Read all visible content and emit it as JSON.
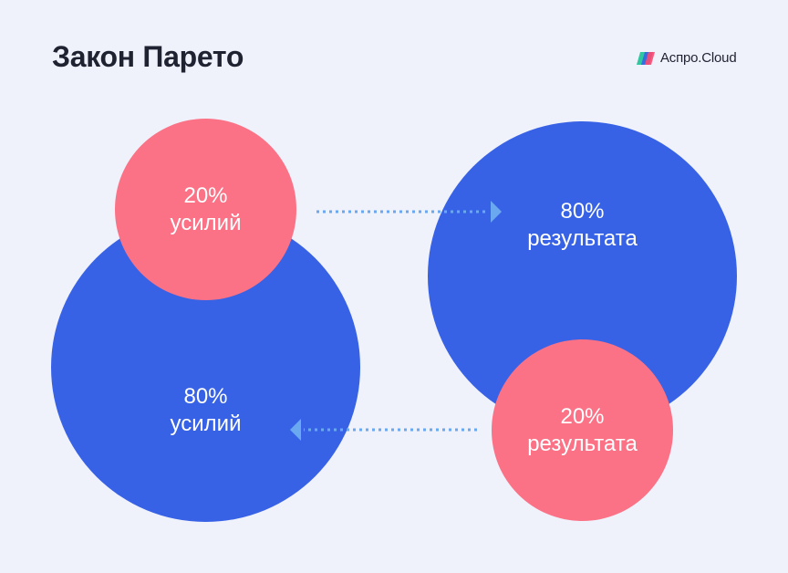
{
  "title": "Закон Парето",
  "logo": {
    "name": "Аспро.Cloud",
    "icon": "aspro-cloud-logo-icon"
  },
  "colors": {
    "background": "#eff1fb",
    "blue": "#3762e6",
    "pink": "#fb7286",
    "arrow": "#6aa8ef"
  },
  "circles": {
    "effort_small": {
      "percent": "20%",
      "label": "усилий"
    },
    "effort_large": {
      "percent": "80%",
      "label": "усилий"
    },
    "result_large": {
      "percent": "80%",
      "label": "результата"
    },
    "result_small": {
      "percent": "20%",
      "label": "результата"
    }
  },
  "arrows": [
    {
      "from": "effort_small",
      "to": "result_large",
      "direction": "right"
    },
    {
      "from": "result_small",
      "to": "effort_large",
      "direction": "left"
    }
  ]
}
